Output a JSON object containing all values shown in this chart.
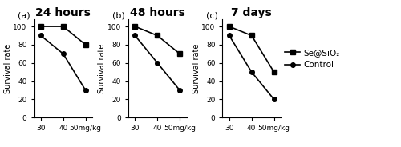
{
  "panels": [
    {
      "label": "(a)",
      "title": "24 hours",
      "x": [
        30,
        40,
        50
      ],
      "se_sio2": [
        100,
        100,
        80
      ],
      "control": [
        90,
        70,
        30
      ],
      "xticks": [
        30,
        40,
        50
      ],
      "xticklabels": [
        "30",
        "40",
        "50mg/kg"
      ],
      "ylim": [
        0,
        108
      ],
      "yticks": [
        0,
        20,
        40,
        60,
        80,
        100
      ],
      "ylabel": "Survival rate"
    },
    {
      "label": "(b)",
      "title": "48 hours",
      "x": [
        30,
        40,
        50
      ],
      "se_sio2": [
        100,
        90,
        70
      ],
      "control": [
        90,
        60,
        30
      ],
      "xticks": [
        30,
        40,
        50
      ],
      "xticklabels": [
        "30",
        "40",
        "50mg/kg"
      ],
      "ylim": [
        0,
        108
      ],
      "yticks": [
        0,
        20,
        40,
        60,
        80,
        100
      ],
      "ylabel": "Survival rate"
    },
    {
      "label": "(c)",
      "title": "7 days",
      "x": [
        30,
        40,
        50
      ],
      "se_sio2": [
        100,
        90,
        50
      ],
      "control": [
        90,
        50,
        20
      ],
      "xticks": [
        30,
        40,
        50
      ],
      "xticklabels": [
        "30",
        "40",
        "50mg/kg"
      ],
      "ylim": [
        0,
        108
      ],
      "yticks": [
        0,
        20,
        40,
        60,
        80,
        100
      ],
      "ylabel": "Survival rate"
    }
  ],
  "legend_labels": [
    "Se@SiO₂",
    "Control"
  ],
  "line_color": "black",
  "marker_se": "s",
  "marker_control": "o",
  "markersize": 4,
  "linewidth": 1.2,
  "title_fontsize": 10,
  "label_fontsize": 7,
  "tick_fontsize": 6.5,
  "legend_fontsize": 7.5,
  "panel_label_fontsize": 8
}
